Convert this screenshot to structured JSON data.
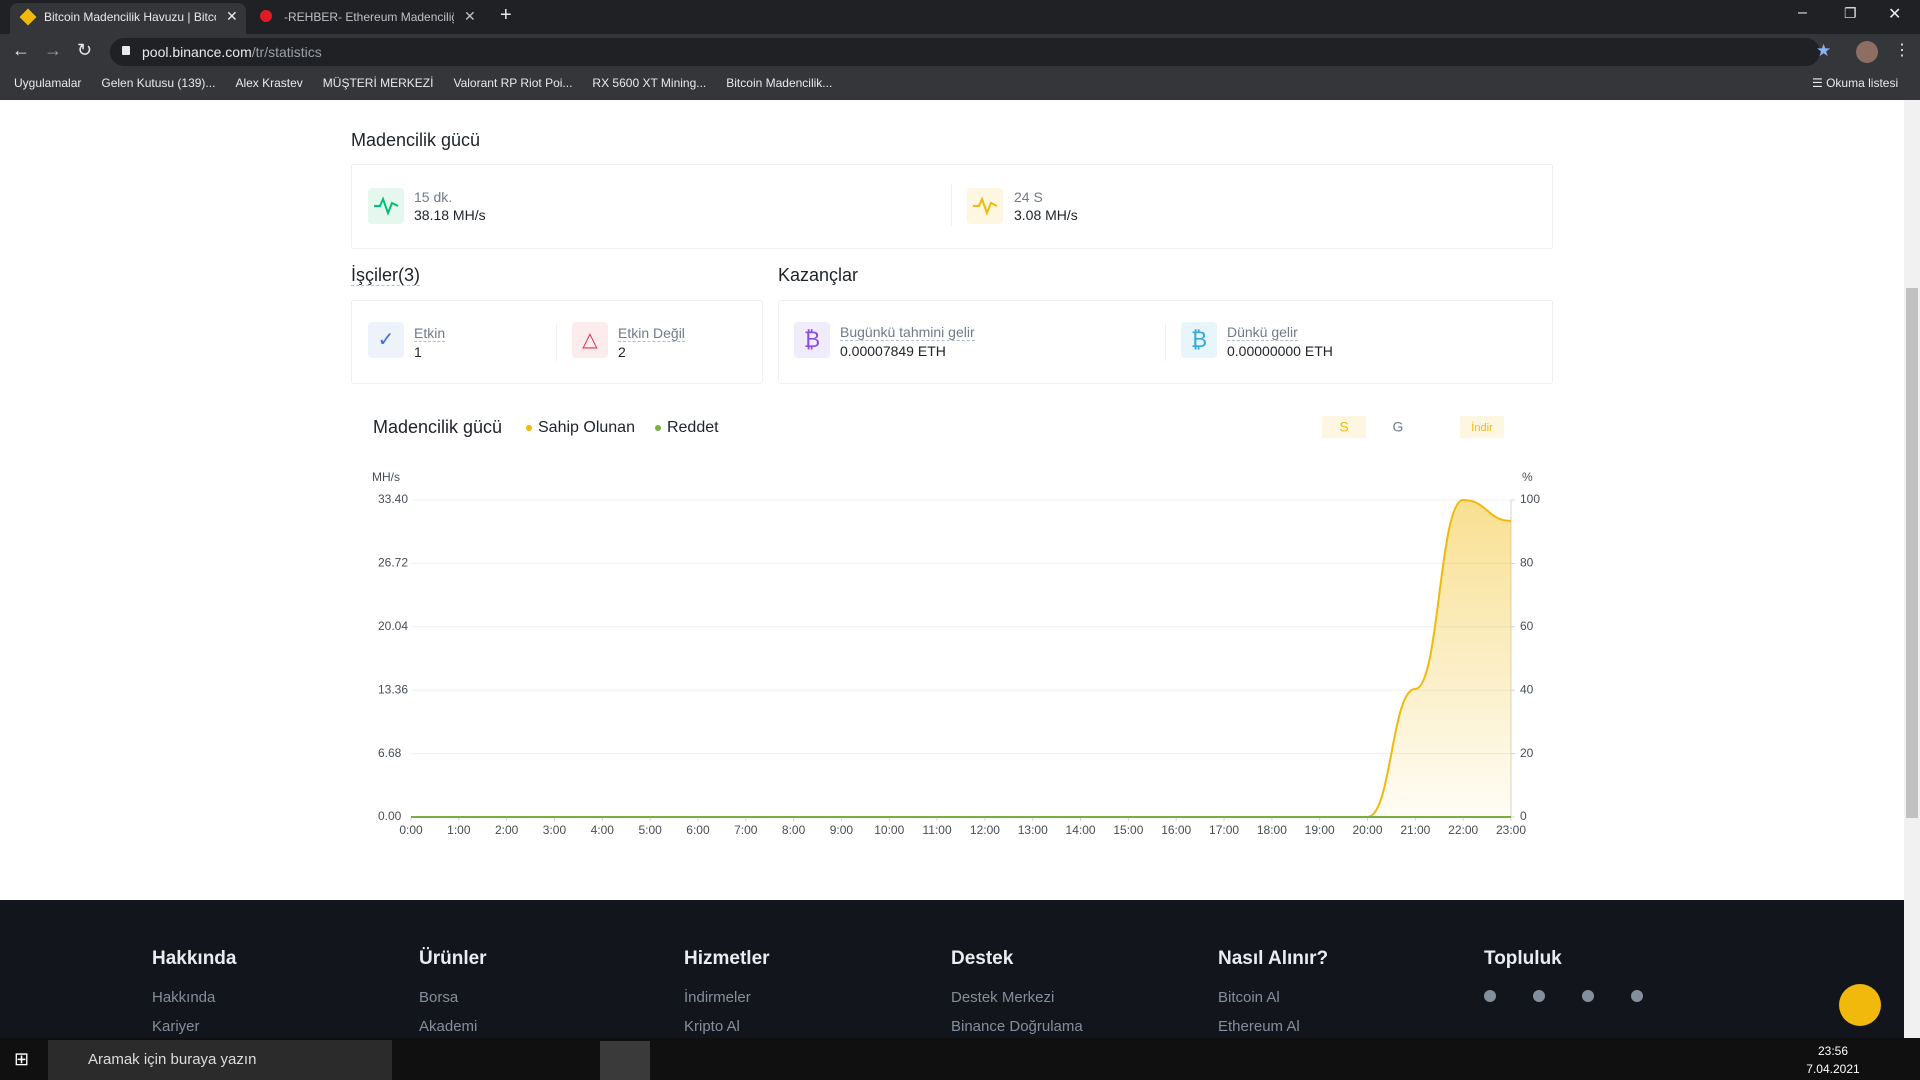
{
  "browser": {
    "tabs": [
      "Bitcoin Madencilik Havuzu | Bitco",
      "-REHBER- Ethereum Madenciliği"
    ],
    "url": {
      "host": "pool.binance.com",
      "path": "/tr/statistics"
    },
    "bookmarks": [
      "Uygulamalar",
      "Gelen Kutusu (139)...",
      "Alex Krastev",
      "MÜŞTERİ MERKEZİ",
      "Valorant RP Riot Poi...",
      "RX 5600 XT Mining...",
      "Bitcoin Madencilik..."
    ],
    "reading_list": "Okuma listesi"
  },
  "page": {
    "hashrate": {
      "title": "Madencilik gücü",
      "items": [
        {
          "label": "15 dk.",
          "value": "38.18 MH/s"
        },
        {
          "label": "24 S",
          "value": "3.08 MH/s"
        }
      ]
    },
    "workers": {
      "title": "İşçiler(3)",
      "items": [
        {
          "label": "Etkin",
          "value": "1"
        },
        {
          "label": "Etkin Değil",
          "value": "2"
        }
      ]
    },
    "earnings": {
      "title": "Kazançlar",
      "items": [
        {
          "label": "Bugünkü tahmini gelir",
          "value": "0.00007849 ETH"
        },
        {
          "label": "Dünkü gelir",
          "value": "0.00000000 ETH"
        }
      ]
    }
  },
  "chart_data": {
    "type": "line",
    "title": "Madencilik gücü",
    "y_label": "MH/s",
    "y2_label": "%",
    "buttons": [
      "S",
      "G",
      "İndir"
    ],
    "categories": [
      "0:00",
      "1:00",
      "2:00",
      "3:00",
      "4:00",
      "5:00",
      "6:00",
      "7:00",
      "8:00",
      "9:00",
      "10:00",
      "11:00",
      "12:00",
      "13:00",
      "14:00",
      "15:00",
      "16:00",
      "17:00",
      "18:00",
      "19:00",
      "20:00",
      "21:00",
      "22:00",
      "23:00"
    ],
    "series": [
      {
        "name": "Sahip Olunan",
        "color": "#f0b90b",
        "values": [
          0,
          0,
          0,
          0,
          0,
          0,
          0,
          0,
          0,
          0,
          0,
          0,
          0,
          0,
          0,
          0,
          0,
          0,
          0,
          0,
          0,
          13.5,
          33.4,
          31.2
        ]
      },
      {
        "name": "Reddet",
        "color": "#76b041",
        "values": [
          0,
          0,
          0,
          0,
          0,
          0,
          0,
          0,
          0,
          0,
          0,
          0,
          0,
          0,
          0,
          0,
          0,
          0,
          0,
          0,
          0,
          0,
          0,
          0
        ]
      }
    ],
    "ylim": [
      0,
      33.4
    ],
    "yticks": [
      {
        "value": 0,
        "label": "0.00"
      },
      6.68,
      13.36,
      20.04,
      26.72,
      {
        "value": 33.4,
        "label": "33.40"
      }
    ],
    "y2lim": [
      0,
      100
    ],
    "y2ticks": [
      0,
      20,
      40,
      60,
      80,
      100
    ],
    "grid": true
  },
  "footer": {
    "columns": [
      {
        "title": "Hakkında",
        "links": [
          "Hakkında",
          "Kariyer"
        ]
      },
      {
        "title": "Ürünler",
        "links": [
          "Borsa",
          "Akademi"
        ]
      },
      {
        "title": "Hizmetler",
        "links": [
          "İndirmeler",
          "Kripto Al"
        ]
      },
      {
        "title": "Destek",
        "links": [
          "Destek Merkezi",
          "Binance Doğrulama"
        ]
      },
      {
        "title": "Nasıl Alınır?",
        "links": [
          "Bitcoin Al",
          "Ethereum Al"
        ]
      },
      {
        "title": "Topluluk",
        "links": []
      }
    ]
  },
  "taskbar": {
    "search": "Aramak için buraya yazın",
    "time": "23:56",
    "date": "7.04.2021"
  }
}
